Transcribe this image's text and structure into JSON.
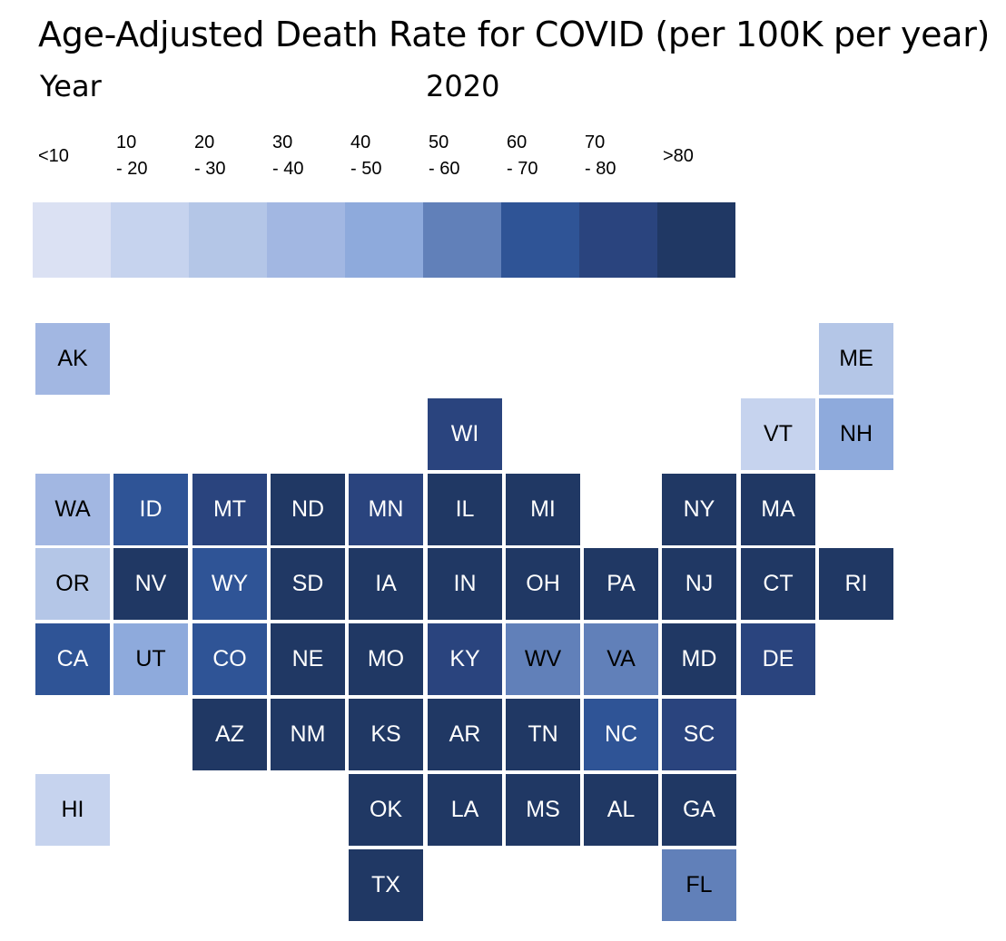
{
  "header": {
    "title": "Age-Adjusted Death Rate for COVID (per 100K per year)",
    "year_label": "Year",
    "year_value": "2020"
  },
  "legend": {
    "bins": [
      {
        "label": "<10",
        "color": "#dbe1f3"
      },
      {
        "label": "10\n- 20",
        "color": "#c6d3ee"
      },
      {
        "label": "20\n- 30",
        "color": "#b4c6e7"
      },
      {
        "label": "30\n- 40",
        "color": "#a2b7e2"
      },
      {
        "label": "40\n- 50",
        "color": "#8eaadc"
      },
      {
        "label": "50\n- 60",
        "color": "#6180b9"
      },
      {
        "label": "60\n- 70",
        "color": "#2f5496"
      },
      {
        "label": "70\n- 80",
        "color": "#2a447e"
      },
      {
        "label": ">80",
        "color": "#203864"
      }
    ]
  },
  "map": {
    "tiles": [
      {
        "abbr": "AK",
        "bin": 3,
        "col": 0,
        "row": 0
      },
      {
        "abbr": "ME",
        "bin": 2,
        "col": 10,
        "row": 0
      },
      {
        "abbr": "WI",
        "bin": 7,
        "col": 5,
        "row": 1
      },
      {
        "abbr": "VT",
        "bin": 1,
        "col": 9,
        "row": 1
      },
      {
        "abbr": "NH",
        "bin": 4,
        "col": 10,
        "row": 1
      },
      {
        "abbr": "WA",
        "bin": 3,
        "col": 0,
        "row": 2
      },
      {
        "abbr": "ID",
        "bin": 6,
        "col": 1,
        "row": 2
      },
      {
        "abbr": "MT",
        "bin": 7,
        "col": 2,
        "row": 2
      },
      {
        "abbr": "ND",
        "bin": 8,
        "col": 3,
        "row": 2
      },
      {
        "abbr": "MN",
        "bin": 7,
        "col": 4,
        "row": 2
      },
      {
        "abbr": "IL",
        "bin": 8,
        "col": 5,
        "row": 2
      },
      {
        "abbr": "MI",
        "bin": 8,
        "col": 6,
        "row": 2
      },
      {
        "abbr": "NY",
        "bin": 8,
        "col": 8,
        "row": 2
      },
      {
        "abbr": "MA",
        "bin": 8,
        "col": 9,
        "row": 2
      },
      {
        "abbr": "OR",
        "bin": 2,
        "col": 0,
        "row": 3
      },
      {
        "abbr": "NV",
        "bin": 8,
        "col": 1,
        "row": 3
      },
      {
        "abbr": "WY",
        "bin": 6,
        "col": 2,
        "row": 3
      },
      {
        "abbr": "SD",
        "bin": 8,
        "col": 3,
        "row": 3
      },
      {
        "abbr": "IA",
        "bin": 8,
        "col": 4,
        "row": 3
      },
      {
        "abbr": "IN",
        "bin": 8,
        "col": 5,
        "row": 3
      },
      {
        "abbr": "OH",
        "bin": 8,
        "col": 6,
        "row": 3
      },
      {
        "abbr": "PA",
        "bin": 8,
        "col": 7,
        "row": 3
      },
      {
        "abbr": "NJ",
        "bin": 8,
        "col": 8,
        "row": 3
      },
      {
        "abbr": "CT",
        "bin": 8,
        "col": 9,
        "row": 3
      },
      {
        "abbr": "RI",
        "bin": 8,
        "col": 10,
        "row": 3
      },
      {
        "abbr": "CA",
        "bin": 6,
        "col": 0,
        "row": 4
      },
      {
        "abbr": "UT",
        "bin": 4,
        "col": 1,
        "row": 4
      },
      {
        "abbr": "CO",
        "bin": 6,
        "col": 2,
        "row": 4
      },
      {
        "abbr": "NE",
        "bin": 8,
        "col": 3,
        "row": 4
      },
      {
        "abbr": "MO",
        "bin": 8,
        "col": 4,
        "row": 4
      },
      {
        "abbr": "KY",
        "bin": 7,
        "col": 5,
        "row": 4
      },
      {
        "abbr": "WV",
        "bin": 5,
        "col": 6,
        "row": 4
      },
      {
        "abbr": "VA",
        "bin": 5,
        "col": 7,
        "row": 4
      },
      {
        "abbr": "MD",
        "bin": 8,
        "col": 8,
        "row": 4
      },
      {
        "abbr": "DE",
        "bin": 7,
        "col": 9,
        "row": 4
      },
      {
        "abbr": "AZ",
        "bin": 8,
        "col": 2,
        "row": 5
      },
      {
        "abbr": "NM",
        "bin": 8,
        "col": 3,
        "row": 5
      },
      {
        "abbr": "KS",
        "bin": 8,
        "col": 4,
        "row": 5
      },
      {
        "abbr": "AR",
        "bin": 8,
        "col": 5,
        "row": 5
      },
      {
        "abbr": "TN",
        "bin": 8,
        "col": 6,
        "row": 5
      },
      {
        "abbr": "NC",
        "bin": 6,
        "col": 7,
        "row": 5
      },
      {
        "abbr": "SC",
        "bin": 7,
        "col": 8,
        "row": 5
      },
      {
        "abbr": "HI",
        "bin": 1,
        "col": 0,
        "row": 6
      },
      {
        "abbr": "OK",
        "bin": 8,
        "col": 4,
        "row": 6
      },
      {
        "abbr": "LA",
        "bin": 8,
        "col": 5,
        "row": 6
      },
      {
        "abbr": "MS",
        "bin": 8,
        "col": 6,
        "row": 6
      },
      {
        "abbr": "AL",
        "bin": 8,
        "col": 7,
        "row": 6
      },
      {
        "abbr": "GA",
        "bin": 8,
        "col": 8,
        "row": 6
      },
      {
        "abbr": "TX",
        "bin": 8,
        "col": 4,
        "row": 7
      },
      {
        "abbr": "FL",
        "bin": 5,
        "col": 8,
        "row": 7
      }
    ]
  }
}
